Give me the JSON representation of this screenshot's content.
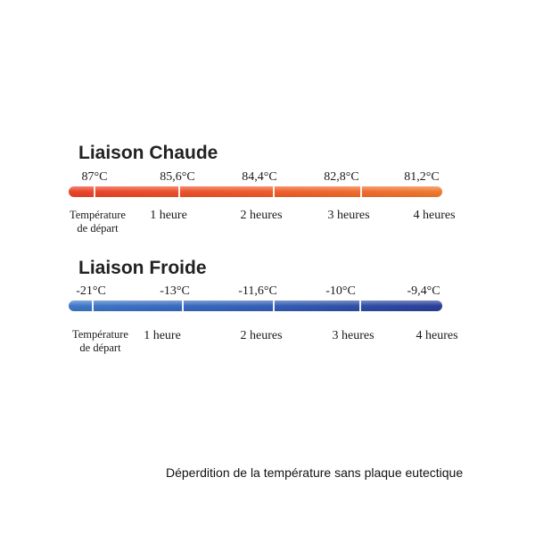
{
  "hot": {
    "title": "Liaison Chaude",
    "temperatures": [
      "87°C",
      "85,6°C",
      "84,4°C",
      "82,8°C",
      "81,2°C"
    ],
    "start_label_line1": "Température",
    "start_label_line2": "de départ",
    "times": [
      "1 heure",
      "2 heures",
      "3 heures",
      "4 heures"
    ],
    "bar_color": "#ef5a2a"
  },
  "cold": {
    "title": "Liaison Froide",
    "temperatures": [
      "-21°C",
      "-13°C",
      "-11,6°C",
      "-10°C",
      "-9,4°C"
    ],
    "start_label_line1": "Température",
    "start_label_line2": "de départ",
    "times": [
      "1 heure",
      "2 heures",
      "3 heures",
      "4 heures"
    ],
    "bar_color": "#3562b8"
  },
  "caption": "Déperdition de la température sans plaque eutectique"
}
